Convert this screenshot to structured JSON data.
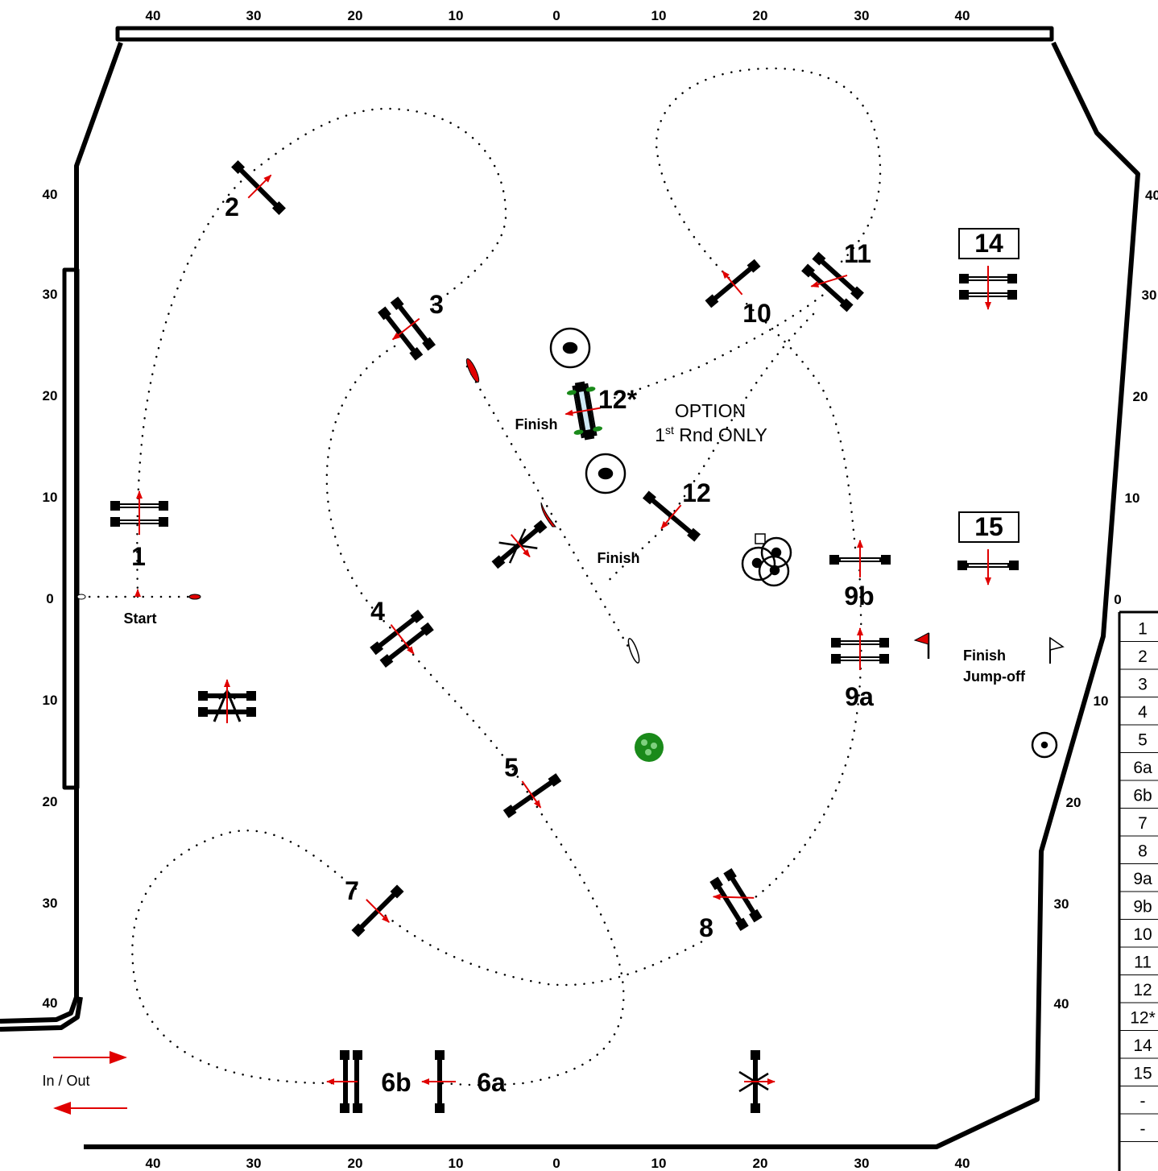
{
  "top_scale": [
    "40",
    "30",
    "20",
    "10",
    "0",
    "10",
    "20",
    "30",
    "40"
  ],
  "bottom_scale": [
    "40",
    "30",
    "20",
    "10",
    "0",
    "10",
    "20",
    "30",
    "40"
  ],
  "left_scale": [
    "40",
    "30",
    "20",
    "10",
    "0",
    "10",
    "20",
    "30",
    "40"
  ],
  "right_scale": [
    "40",
    "30",
    "20",
    "10",
    "0",
    "10",
    "20",
    "30",
    "40"
  ],
  "jumps": [
    {
      "id": "j1",
      "label": "1"
    },
    {
      "id": "j2",
      "label": "2"
    },
    {
      "id": "j3",
      "label": "3"
    },
    {
      "id": "j4",
      "label": "4"
    },
    {
      "id": "j5",
      "label": "5"
    },
    {
      "id": "j6a",
      "label": "6a"
    },
    {
      "id": "j6b",
      "label": "6b"
    },
    {
      "id": "j7",
      "label": "7"
    },
    {
      "id": "j8",
      "label": "8"
    },
    {
      "id": "j9a",
      "label": "9a"
    },
    {
      "id": "j9b",
      "label": "9b"
    },
    {
      "id": "j10",
      "label": "10"
    },
    {
      "id": "j11",
      "label": "11"
    },
    {
      "id": "j12",
      "label": "12"
    },
    {
      "id": "j12s",
      "label": "12*"
    },
    {
      "id": "j14",
      "label": "14"
    },
    {
      "id": "j15",
      "label": "15"
    }
  ],
  "labels": {
    "start": "Start",
    "finish_main": "Finish",
    "finish_option": "Finish",
    "finish_jumpoff_1": "Finish",
    "finish_jumpoff_2": "Jump-off",
    "option_line1": "OPTION",
    "option_line2_pre": "1",
    "option_line2_sup": "st",
    "option_line2_post": " Rnd ONLY",
    "in_out": "In / Out"
  },
  "side_table": [
    "1",
    "2",
    "3",
    "4",
    "5",
    "6a",
    "6b",
    "7",
    "8",
    "9a",
    "9b",
    "10",
    "11",
    "12",
    "12*",
    "14",
    "15",
    "-",
    "-"
  ],
  "colors": {
    "line": "#000000",
    "arrow": "#e00000",
    "green": "#1a8a1a"
  }
}
